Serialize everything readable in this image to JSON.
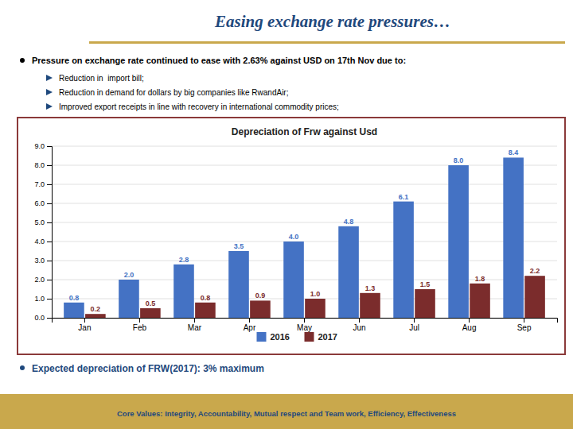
{
  "chart_data": {
    "type": "bar",
    "title": "Depreciation of Frw against Usd",
    "annotations": [
      "Easing exchange rate pressures…",
      "Pressure on exchange rate continued to ease with 2.63% against USD on 17th Nov due to:",
      "Reduction in  import bill;",
      "Reduction in demand for dollars by big companies like RwandAir;",
      "Improved export receipts in line with recovery in international commodity prices;",
      "Expected depreciation of FRW(2017): 3% maximum",
      "Core Values: Integrity, Accountability, Mutual respect and Team work, Efficiency, Effectiveness"
    ],
    "categories": [
      "Jan",
      "Feb",
      "Mar",
      "Apr",
      "May",
      "Jun",
      "Jul",
      "Aug",
      "Sep"
    ],
    "series": [
      {
        "name": "2016",
        "color": "#4472C4",
        "values": [
          0.8,
          2.0,
          2.8,
          3.5,
          4.0,
          4.8,
          6.1,
          8.0,
          8.4
        ],
        "value_labels": [
          "0.8",
          "2.0",
          "2.8",
          "3.5",
          "4.0",
          "4.8",
          "6.1",
          "8.0",
          "8.4"
        ]
      },
      {
        "name": "2017",
        "color": "#7B2C2C",
        "values": [
          0.2,
          0.5,
          0.8,
          0.9,
          1.0,
          1.3,
          1.5,
          1.8,
          2.2
        ],
        "value_labels": [
          "0.2",
          "0.5",
          "0.8",
          "0.9",
          "1.0",
          "1.3",
          "1.5",
          "1.8",
          "2.2"
        ]
      }
    ],
    "ylim": [
      0,
      9.0
    ],
    "yticks": [
      {
        "value": 0.0,
        "label": "0.0"
      },
      {
        "value": 1.0,
        "label": "1.0"
      },
      {
        "value": 2.0,
        "label": "2.0"
      },
      {
        "value": 3.0,
        "label": "3.0"
      },
      {
        "value": 4.0,
        "label": "4.0"
      },
      {
        "value": 5.0,
        "label": "5.0"
      },
      {
        "value": 6.0,
        "label": "6.0"
      },
      {
        "value": 7.0,
        "label": "7.0"
      },
      {
        "value": 8.0,
        "label": "8.0"
      },
      {
        "value": 9.0,
        "label": "9.0"
      }
    ],
    "grid": true,
    "legend": "bottom",
    "data_labels": true
  }
}
